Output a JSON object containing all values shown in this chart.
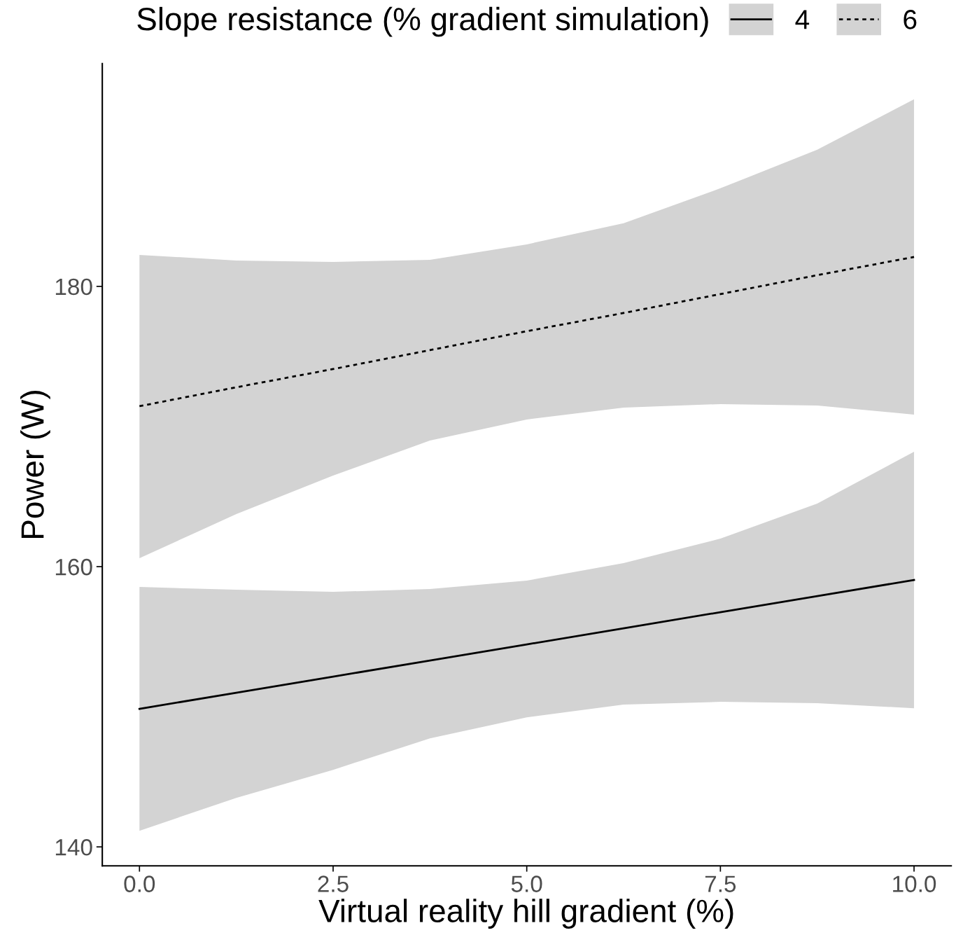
{
  "chart_data": {
    "type": "line",
    "xlabel": "Virtual reality hill gradient (%)",
    "ylabel": "Power (W)",
    "legend_title": "Slope resistance (% gradient simulation)",
    "legend": "top",
    "x": [
      0,
      1.25,
      2.5,
      3.75,
      5,
      6.25,
      7.5,
      8.75,
      10
    ],
    "series": [
      {
        "name": "4",
        "color": "#000000",
        "line_style": "solid",
        "values": [
          149.85,
          151.0,
          152.15,
          153.3,
          154.45,
          155.6,
          156.75,
          157.9,
          159.05
        ],
        "lower": [
          141.15,
          143.5,
          145.5,
          147.75,
          149.25,
          150.15,
          150.35,
          150.25,
          149.9
        ],
        "upper": [
          158.55,
          158.35,
          158.2,
          158.4,
          159.0,
          160.25,
          162.0,
          164.5,
          168.2
        ]
      },
      {
        "name": "6",
        "color": "#000000",
        "line_style": "dotted",
        "values": [
          171.45,
          172.8,
          174.1,
          175.45,
          176.8,
          178.1,
          179.45,
          180.8,
          182.1
        ],
        "lower": [
          160.6,
          163.75,
          166.5,
          169.0,
          170.5,
          171.35,
          171.6,
          171.5,
          170.85
        ],
        "upper": [
          182.25,
          181.85,
          181.75,
          181.9,
          183.0,
          184.5,
          187.0,
          189.75,
          193.35
        ]
      }
    ],
    "xlim": [
      -0.48,
      10.48
    ],
    "ylim": [
      138.65,
      195.9
    ],
    "xticks": [
      {
        "value": 0,
        "label": "0.0"
      },
      2.5,
      {
        "value": 5,
        "label": "5.0"
      },
      7.5,
      {
        "value": 10,
        "label": "10.0"
      }
    ],
    "yticks": [
      140,
      160,
      180
    ],
    "grid": false
  }
}
